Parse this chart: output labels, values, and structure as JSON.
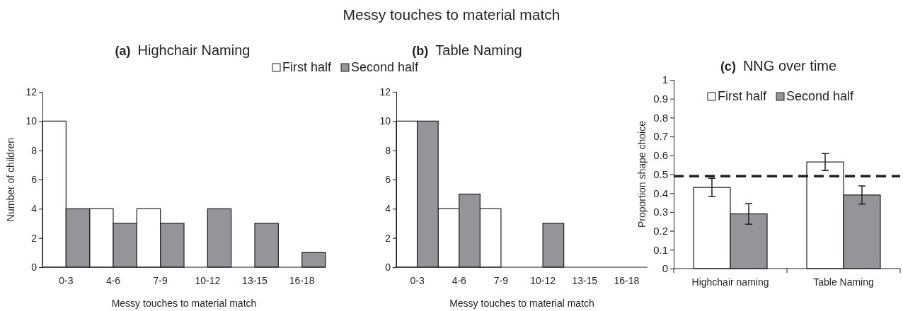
{
  "chart_data": [
    {
      "type": "bar",
      "title": "(a) Highchair Naming",
      "annotations": [
        "Messy touches to material match"
      ],
      "xlabel": "Messy touches to material match",
      "ylabel": "Number of children",
      "categories": [
        "0-3",
        "4-6",
        "7-9",
        "10-12",
        "13-15",
        "16-18"
      ],
      "series": [
        {
          "name": "First half",
          "color": "#ffffff",
          "values": [
            10,
            4,
            4,
            0,
            0,
            0
          ]
        },
        {
          "name": "Second half",
          "color": "#939598",
          "values": [
            4,
            3,
            3,
            4,
            3,
            1
          ]
        }
      ],
      "ylim": [
        0,
        12
      ],
      "yticks": [
        0,
        2,
        4,
        6,
        8,
        10,
        12
      ],
      "grid": false,
      "legend": "top right"
    },
    {
      "type": "bar",
      "title": "(b) Table Naming",
      "xlabel": "Messy touches to material match",
      "categories": [
        "0-3",
        "4-6",
        "7-9",
        "10-12",
        "13-15",
        "16-18"
      ],
      "series": [
        {
          "color": "#ffffff",
          "values": [
            10,
            4,
            4,
            0,
            0,
            0
          ]
        },
        {
          "color": "#939598",
          "values": [
            10,
            5,
            0,
            3,
            0,
            0
          ]
        }
      ],
      "ylim": [
        0,
        12
      ],
      "yticks": [
        0,
        2,
        4,
        6,
        8,
        10,
        12
      ],
      "grid": false,
      "legend": false
    },
    {
      "type": "bar",
      "title": "(c) NNG over time",
      "ylabel": "Proportion shape choice",
      "categories": [
        "Highchair naming",
        "Table Naming"
      ],
      "series": [
        {
          "name": "First half",
          "color": "#ffffff",
          "values": [
            0.43,
            0.565
          ],
          "errors": [
            0.048,
            0.045
          ]
        },
        {
          "name": "Second half",
          "color": "#939598",
          "values": [
            0.29,
            0.39
          ],
          "errors": [
            0.055,
            0.048
          ]
        }
      ],
      "ylim": [
        0,
        1
      ],
      "yticks": [
        0,
        0.1,
        0.2,
        0.3,
        0.4,
        0.5,
        0.6,
        0.7,
        0.8,
        0.9,
        1
      ],
      "grid": false,
      "legend": "top",
      "ref_lines": [
        {
          "axis": "y",
          "value": 0.49,
          "color": "#231f20",
          "line_style": "dashed"
        }
      ]
    }
  ]
}
